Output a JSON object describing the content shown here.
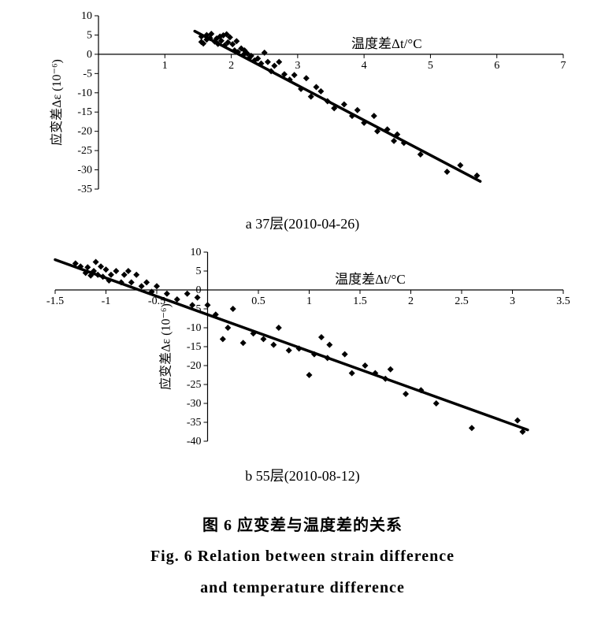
{
  "figure": {
    "caption_zh": "图 6  应变差与温度差的关系",
    "caption_en_line1": "Fig. 6  Relation between strain difference",
    "caption_en_line2": "and temperature difference"
  },
  "panel_a": {
    "type": "scatter",
    "sub_caption": "a 37层(2010-04-26)",
    "x_axis_label": "温度差Δt/°C",
    "y_axis_label": "应变差Δε (10⁻⁶)",
    "xlim": [
      0,
      7
    ],
    "ylim": [
      -35,
      10
    ],
    "x_ticks": [
      0,
      1,
      2,
      3,
      4,
      5,
      6,
      7
    ],
    "y_ticks": [
      -35,
      -30,
      -25,
      -20,
      -15,
      -10,
      -5,
      0,
      5,
      10
    ],
    "background_color": "#ffffff",
    "axis_color": "#000000",
    "tick_color": "#000000",
    "label_fontsize": 15,
    "tick_fontsize": 14,
    "marker_color": "#000000",
    "marker_size": 4,
    "line_color": "#000000",
    "line_width": 3.5,
    "trend_line": {
      "p1": [
        1.45,
        6.0
      ],
      "p2": [
        5.75,
        -33.0
      ]
    },
    "points": [
      [
        1.55,
        3.2
      ],
      [
        1.55,
        4.6
      ],
      [
        1.58,
        2.8
      ],
      [
        1.63,
        3.8
      ],
      [
        1.63,
        5.0
      ],
      [
        1.68,
        4.2
      ],
      [
        1.7,
        5.3
      ],
      [
        1.75,
        3.3
      ],
      [
        1.78,
        4.1
      ],
      [
        1.8,
        2.7
      ],
      [
        1.83,
        4.6
      ],
      [
        1.85,
        3.5
      ],
      [
        1.88,
        4.9
      ],
      [
        1.9,
        2.3
      ],
      [
        1.93,
        5.2
      ],
      [
        1.95,
        3.1
      ],
      [
        1.98,
        4.4
      ],
      [
        2.02,
        2.6
      ],
      [
        2.05,
        1.0
      ],
      [
        2.08,
        3.4
      ],
      [
        2.1,
        0.6
      ],
      [
        2.15,
        1.5
      ],
      [
        2.18,
        -0.2
      ],
      [
        2.2,
        1.0
      ],
      [
        2.24,
        0.2
      ],
      [
        2.27,
        -1.0
      ],
      [
        2.3,
        -0.4
      ],
      [
        2.35,
        -1.6
      ],
      [
        2.4,
        -1.1
      ],
      [
        2.45,
        -2.4
      ],
      [
        2.5,
        0.4
      ],
      [
        2.55,
        -2.0
      ],
      [
        2.6,
        -4.4
      ],
      [
        2.65,
        -3.0
      ],
      [
        2.72,
        -2.0
      ],
      [
        2.8,
        -5.2
      ],
      [
        2.88,
        -6.6
      ],
      [
        2.95,
        -5.4
      ],
      [
        3.05,
        -9.0
      ],
      [
        3.13,
        -6.2
      ],
      [
        3.2,
        -11.0
      ],
      [
        3.28,
        -8.5
      ],
      [
        3.35,
        -9.6
      ],
      [
        3.45,
        -12.2
      ],
      [
        3.55,
        -14.0
      ],
      [
        3.7,
        -13.0
      ],
      [
        3.82,
        -16.0
      ],
      [
        3.9,
        -14.5
      ],
      [
        4.0,
        -17.8
      ],
      [
        4.15,
        -16.0
      ],
      [
        4.2,
        -20.0
      ],
      [
        4.35,
        -19.5
      ],
      [
        4.45,
        -22.5
      ],
      [
        4.5,
        -20.8
      ],
      [
        4.6,
        -23.0
      ],
      [
        4.85,
        -26.0
      ],
      [
        5.25,
        -30.5
      ],
      [
        5.45,
        -28.8
      ],
      [
        5.7,
        -31.5
      ]
    ]
  },
  "panel_b": {
    "type": "scatter",
    "sub_caption": "b 55层(2010-08-12)",
    "x_axis_label": "温度差Δt/°C",
    "y_axis_label": "应变差Δε (10⁻⁶)",
    "xlim": [
      -1.5,
      3.5
    ],
    "ylim": [
      -40,
      10
    ],
    "x_ticks": [
      -1.5,
      -1,
      -0.5,
      0,
      0.5,
      1,
      1.5,
      2,
      2.5,
      3,
      3.5
    ],
    "y_ticks": [
      -40,
      -35,
      -30,
      -25,
      -20,
      -15,
      -10,
      -5,
      0,
      5,
      10
    ],
    "background_color": "#ffffff",
    "axis_color": "#000000",
    "tick_color": "#000000",
    "label_fontsize": 15,
    "tick_fontsize": 14,
    "marker_color": "#000000",
    "marker_size": 4,
    "line_color": "#000000",
    "line_width": 3.5,
    "trend_line": {
      "p1": [
        -1.5,
        8.0
      ],
      "p2": [
        3.15,
        -37.0
      ]
    },
    "points": [
      [
        -1.3,
        7.0
      ],
      [
        -1.25,
        6.2
      ],
      [
        -1.2,
        4.5
      ],
      [
        -1.18,
        6.0
      ],
      [
        -1.15,
        3.8
      ],
      [
        -1.12,
        5.0
      ],
      [
        -1.1,
        7.4
      ],
      [
        -1.08,
        4.0
      ],
      [
        -1.05,
        6.2
      ],
      [
        -1.03,
        3.5
      ],
      [
        -1.0,
        5.4
      ],
      [
        -0.97,
        2.5
      ],
      [
        -0.95,
        4.0
      ],
      [
        -0.9,
        5.0
      ],
      [
        -0.85,
        2.0
      ],
      [
        -0.82,
        4.0
      ],
      [
        -0.78,
        5.0
      ],
      [
        -0.75,
        2.0
      ],
      [
        -0.7,
        4.0
      ],
      [
        -0.65,
        1.0
      ],
      [
        -0.6,
        2.0
      ],
      [
        -0.55,
        -0.5
      ],
      [
        -0.5,
        1.0
      ],
      [
        -0.4,
        -1.0
      ],
      [
        -0.3,
        -2.5
      ],
      [
        -0.2,
        -1.0
      ],
      [
        -0.15,
        -4.0
      ],
      [
        -0.1,
        -2.0
      ],
      [
        0.0,
        -4.0
      ],
      [
        0.08,
        -6.5
      ],
      [
        0.15,
        -13.0
      ],
      [
        0.2,
        -10.0
      ],
      [
        0.25,
        -5.0
      ],
      [
        0.35,
        -14.0
      ],
      [
        0.45,
        -11.5
      ],
      [
        0.55,
        -13.0
      ],
      [
        0.65,
        -14.5
      ],
      [
        0.7,
        -10.0
      ],
      [
        0.8,
        -16.0
      ],
      [
        0.9,
        -15.5
      ],
      [
        1.0,
        -22.5
      ],
      [
        1.05,
        -17.0
      ],
      [
        1.12,
        -12.5
      ],
      [
        1.2,
        -14.5
      ],
      [
        1.18,
        -18.0
      ],
      [
        1.35,
        -17.0
      ],
      [
        1.42,
        -22.0
      ],
      [
        1.55,
        -20.0
      ],
      [
        1.65,
        -22.0
      ],
      [
        1.75,
        -23.5
      ],
      [
        1.8,
        -21.0
      ],
      [
        1.95,
        -27.5
      ],
      [
        2.1,
        -26.5
      ],
      [
        2.25,
        -30.0
      ],
      [
        2.6,
        -36.5
      ],
      [
        3.05,
        -34.5
      ],
      [
        3.1,
        -37.5
      ]
    ]
  }
}
